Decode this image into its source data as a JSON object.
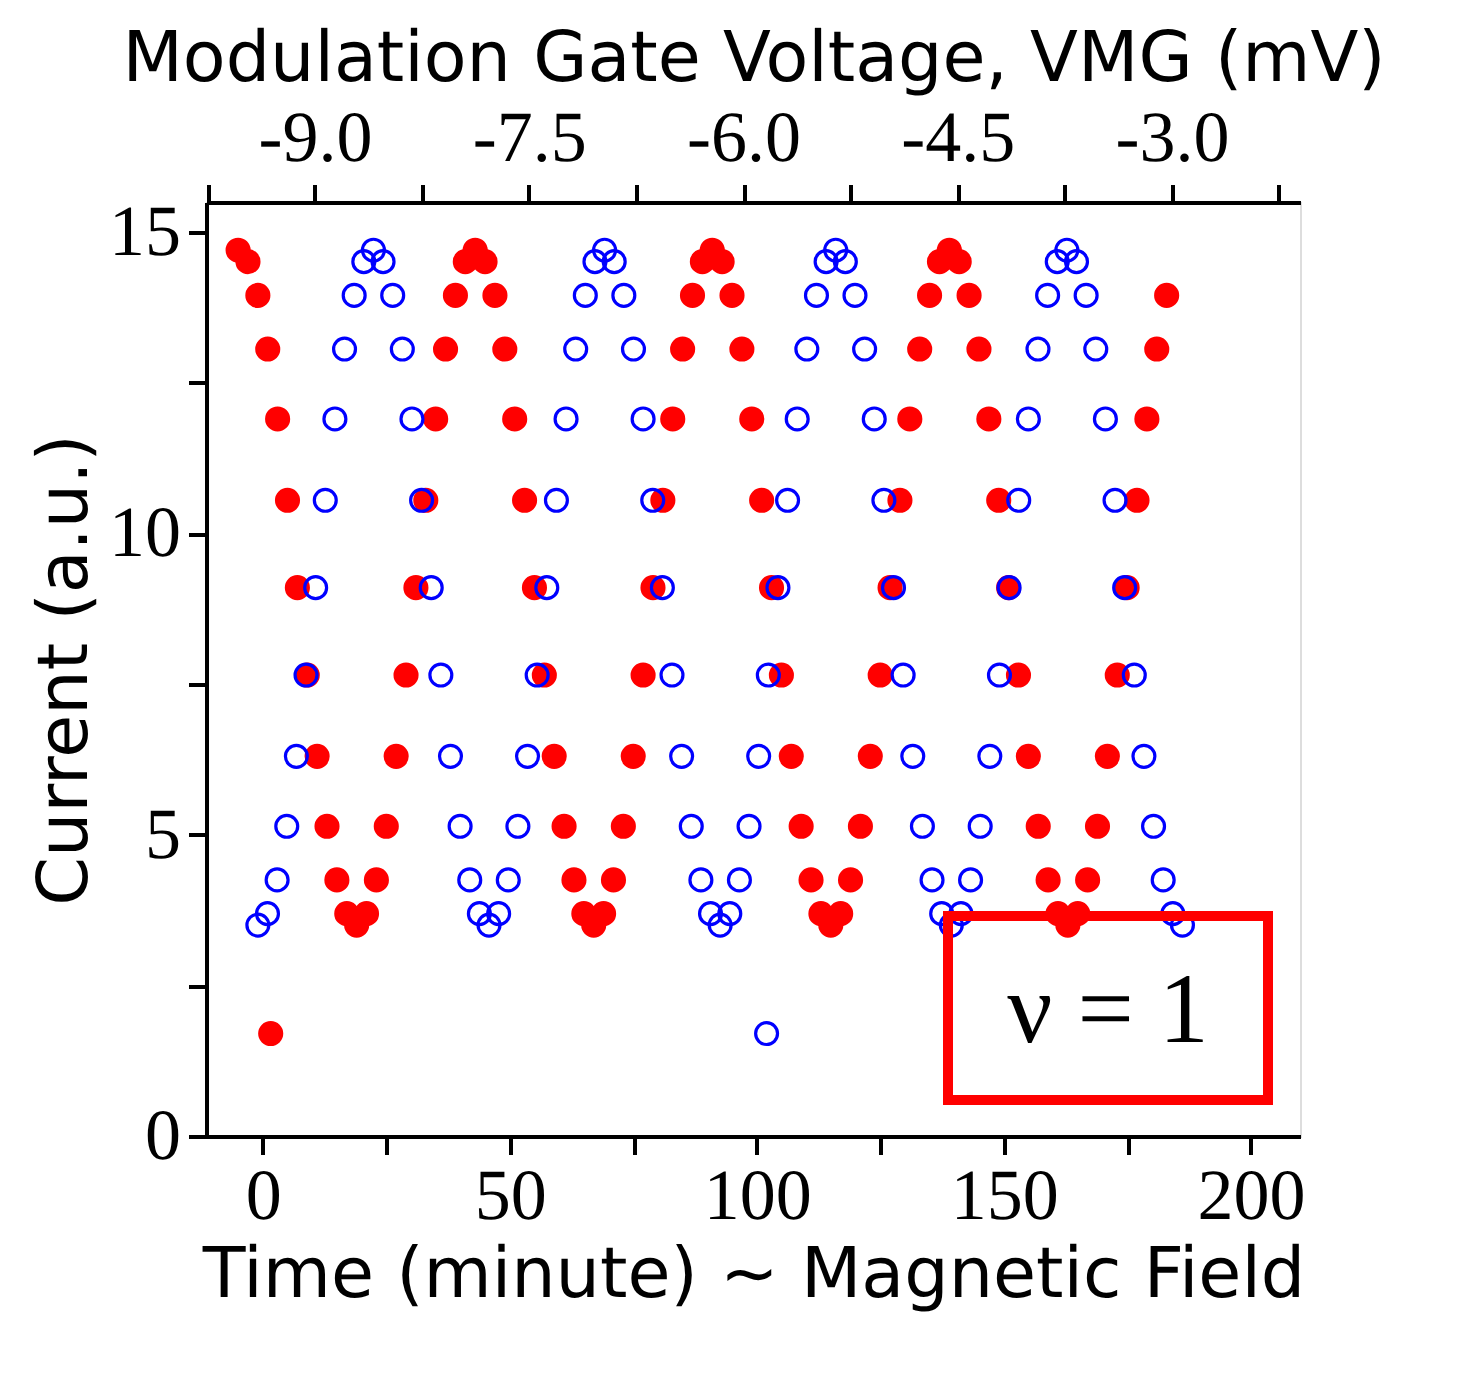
{
  "chart_data": {
    "type": "scatter",
    "xlabel": "Time (minute) ~ Magnetic Field",
    "ylabel": "Current (a.u.)",
    "x2label": "Modulation Gate Voltage, VMG (mV)",
    "xlim": [
      -11.5,
      210
    ],
    "xticks": [
      0,
      {
        "value": 25,
        "label": null
      },
      50,
      {
        "value": 75,
        "label": null
      },
      100,
      {
        "value": 125,
        "label": null
      },
      150,
      {
        "value": 175,
        "label": null
      },
      200
    ],
    "ylim": [
      0,
      15.5
    ],
    "yticks": [
      0,
      {
        "value": 2.5,
        "label": null
      },
      5,
      {
        "value": 7.5,
        "label": null
      },
      10,
      {
        "value": 12.5,
        "label": null
      },
      15
    ],
    "x2lim": [
      -9.76,
      -2.1
    ],
    "x2ticks": [
      {
        "value": -9.75,
        "label": null
      },
      {
        "value": -9,
        "label": "-9.0"
      },
      {
        "value": -8.25,
        "label": null
      },
      {
        "value": -7.5,
        "label": "-7.5"
      },
      {
        "value": -6.75,
        "label": null
      },
      {
        "value": -6,
        "label": "-6.0"
      },
      {
        "value": -5.25,
        "label": null
      },
      {
        "value": -4.5,
        "label": "-4.5"
      },
      {
        "value": -3.75,
        "label": null
      },
      {
        "value": -3,
        "label": "-3.0"
      },
      {
        "value": -2.25,
        "label": null
      }
    ],
    "marker": "circle",
    "grid": false,
    "annotations": [
      "ν = 1"
    ],
    "series": [
      {
        "color": "#ff0000",
        "x": [
          -5,
          -3,
          -1,
          1,
          3,
          5,
          7,
          9,
          11,
          13,
          15,
          17,
          19,
          21,
          23,
          25,
          27,
          29,
          31,
          33,
          35,
          37,
          39,
          41,
          43,
          45,
          47,
          49,
          51,
          53,
          55,
          57,
          59,
          61,
          63,
          65,
          67,
          69,
          71,
          73,
          75,
          77,
          79,
          81,
          83,
          85,
          87,
          89,
          91,
          93,
          95,
          97,
          99,
          101,
          103,
          105,
          107,
          109,
          111,
          113,
          115,
          117,
          119,
          121,
          123,
          125,
          127,
          129,
          131,
          133,
          135,
          137,
          139,
          141,
          143,
          145,
          147,
          149,
          151,
          153,
          155,
          157,
          159,
          161,
          163,
          165,
          167,
          169,
          171,
          173,
          175,
          177,
          179,
          181,
          183,
          1.6
        ],
        "values": [
          14.7,
          14.51,
          13.95,
          13.06,
          11.9,
          10.55,
          9.1,
          7.65,
          6.3,
          5.14,
          4.25,
          3.69,
          3.5,
          3.69,
          4.25,
          5.14,
          6.3,
          7.65,
          9.1,
          10.55,
          11.9,
          13.06,
          13.95,
          14.51,
          14.7,
          14.51,
          13.95,
          13.06,
          11.9,
          10.55,
          9.1,
          7.65,
          6.3,
          5.14,
          4.25,
          3.69,
          3.5,
          3.69,
          4.25,
          5.14,
          6.3,
          7.65,
          9.1,
          10.55,
          11.9,
          13.06,
          13.95,
          14.51,
          14.7,
          14.51,
          13.95,
          13.06,
          11.9,
          10.55,
          9.1,
          7.65,
          6.3,
          5.14,
          4.25,
          3.69,
          3.5,
          3.69,
          4.25,
          5.14,
          6.3,
          7.65,
          9.1,
          10.55,
          11.9,
          13.06,
          13.95,
          14.51,
          14.7,
          14.51,
          13.95,
          13.06,
          11.9,
          10.55,
          9.1,
          7.65,
          6.3,
          5.14,
          4.25,
          3.69,
          3.5,
          3.69,
          4.25,
          5.14,
          6.3,
          7.65,
          9.1,
          10.55,
          11.9,
          13.06,
          13.95,
          1.7
        ]
      },
      {
        "color": "#0000ff",
        "x": [
          -1,
          0.95,
          2.9,
          4.85,
          6.8,
          8.75,
          10.7,
          12.65,
          14.6,
          16.55,
          18.5,
          20.45,
          22.4,
          24.35,
          26.3,
          28.25,
          30.2,
          32.15,
          34.1,
          36.05,
          38,
          39.95,
          41.9,
          43.85,
          45.8,
          47.75,
          49.7,
          51.65,
          53.6,
          55.55,
          57.5,
          59.45,
          61.4,
          63.35,
          65.3,
          67.25,
          69.2,
          71.15,
          73.1,
          75.05,
          77,
          78.95,
          80.9,
          82.85,
          84.8,
          86.75,
          88.7,
          90.65,
          92.6,
          94.55,
          96.5,
          98.45,
          100.4,
          102.35,
          104.3,
          106.25,
          108.2,
          110.15,
          112.1,
          114.05,
          116,
          117.95,
          119.9,
          121.85,
          123.8,
          125.75,
          127.7,
          129.65,
          131.6,
          133.55,
          135.5,
          137.45,
          139.4,
          141.35,
          143.3,
          145.25,
          147.2,
          149.15,
          151.1,
          153.05,
          155,
          156.95,
          158.9,
          160.85,
          162.8,
          164.75,
          166.7,
          168.65,
          170.6,
          172.55,
          174.5,
          176.45,
          178.4,
          180.35,
          182.3,
          184.25,
          186.2,
          102
        ],
        "values": [
          3.5,
          3.69,
          4.25,
          5.14,
          6.3,
          7.65,
          9.1,
          10.55,
          11.9,
          13.06,
          13.95,
          14.51,
          14.7,
          14.51,
          13.95,
          13.06,
          11.9,
          10.55,
          9.1,
          7.65,
          6.3,
          5.14,
          4.25,
          3.69,
          3.5,
          3.69,
          4.25,
          5.14,
          6.3,
          7.65,
          9.1,
          10.55,
          11.9,
          13.06,
          13.95,
          14.51,
          14.7,
          14.51,
          13.95,
          13.06,
          11.9,
          10.55,
          9.1,
          7.65,
          6.3,
          5.14,
          4.25,
          3.69,
          3.5,
          3.69,
          4.25,
          5.14,
          6.3,
          7.65,
          9.1,
          10.55,
          11.9,
          13.06,
          13.95,
          14.51,
          14.7,
          14.51,
          13.95,
          13.06,
          11.9,
          10.55,
          9.1,
          7.65,
          6.3,
          5.14,
          4.25,
          3.69,
          3.5,
          3.69,
          4.25,
          5.14,
          6.3,
          7.65,
          9.1,
          10.55,
          11.9,
          13.06,
          13.95,
          14.51,
          14.7,
          14.51,
          13.95,
          13.06,
          11.9,
          10.55,
          9.1,
          7.65,
          6.3,
          5.14,
          4.25,
          3.69,
          3.5,
          1.7
        ]
      }
    ]
  }
}
